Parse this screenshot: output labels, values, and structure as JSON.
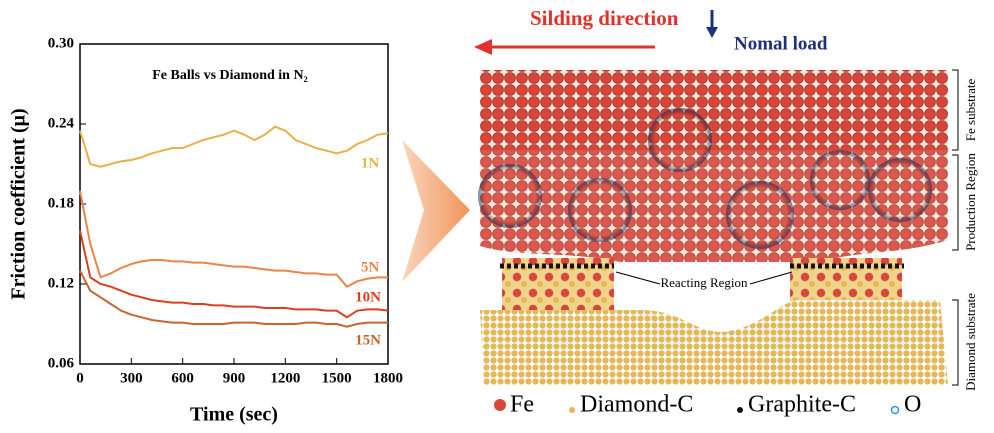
{
  "chart_data": {
    "type": "line",
    "title": "Fe Balls vs Diamond in N₂",
    "x_label": "Time (sec)",
    "y_label": "Friction coefficient (μ)",
    "x": [
      0,
      60,
      120,
      180,
      240,
      300,
      360,
      420,
      480,
      540,
      600,
      660,
      720,
      780,
      840,
      900,
      960,
      1020,
      1080,
      1140,
      1200,
      1260,
      1320,
      1380,
      1440,
      1500,
      1560,
      1620,
      1680,
      1740,
      1800
    ],
    "series": [
      {
        "name": "1N",
        "color": "#e8b04a",
        "values": [
          0.235,
          0.21,
          0.208,
          0.21,
          0.212,
          0.213,
          0.215,
          0.218,
          0.22,
          0.222,
          0.222,
          0.225,
          0.228,
          0.23,
          0.232,
          0.235,
          0.232,
          0.228,
          0.232,
          0.238,
          0.235,
          0.228,
          0.225,
          0.222,
          0.22,
          0.218,
          0.22,
          0.225,
          0.228,
          0.232,
          0.233
        ]
      },
      {
        "name": "5N",
        "color": "#ea8448",
        "values": [
          0.19,
          0.15,
          0.125,
          0.128,
          0.132,
          0.135,
          0.137,
          0.138,
          0.138,
          0.137,
          0.137,
          0.136,
          0.136,
          0.135,
          0.134,
          0.133,
          0.133,
          0.132,
          0.131,
          0.13,
          0.13,
          0.129,
          0.128,
          0.128,
          0.127,
          0.127,
          0.118,
          0.122,
          0.124,
          0.125,
          0.125
        ]
      },
      {
        "name": "10N",
        "color": "#d9401e",
        "values": [
          0.16,
          0.125,
          0.12,
          0.118,
          0.115,
          0.112,
          0.11,
          0.108,
          0.107,
          0.106,
          0.106,
          0.105,
          0.105,
          0.104,
          0.104,
          0.103,
          0.103,
          0.103,
          0.102,
          0.102,
          0.102,
          0.101,
          0.101,
          0.101,
          0.1,
          0.1,
          0.095,
          0.1,
          0.101,
          0.101,
          0.1
        ]
      },
      {
        "name": "15N",
        "color": "#c8642e",
        "values": [
          0.13,
          0.115,
          0.11,
          0.105,
          0.1,
          0.097,
          0.095,
          0.093,
          0.092,
          0.091,
          0.091,
          0.09,
          0.09,
          0.09,
          0.09,
          0.091,
          0.091,
          0.091,
          0.09,
          0.09,
          0.09,
          0.09,
          0.091,
          0.091,
          0.09,
          0.09,
          0.088,
          0.09,
          0.091,
          0.091,
          0.091
        ]
      }
    ],
    "xlim": [
      0,
      1800
    ],
    "xticks": [
      0,
      300,
      600,
      900,
      1200,
      1500,
      1800
    ],
    "ylim": [
      0.06,
      0.3
    ],
    "yticks": [
      0.06,
      0.12,
      0.18,
      0.24,
      {
        "value": 0.3,
        "label": "0.30"
      }
    ]
  },
  "diagram": {
    "sliding_direction": "Silding direction",
    "normal_load": "Nomal load",
    "regions": [
      "Fe substrate",
      "Production Region",
      "Reacting Region",
      "Diamond substrate"
    ],
    "legend": [
      "Fe",
      "Diamond-C",
      "Graphite-C",
      "O"
    ]
  }
}
